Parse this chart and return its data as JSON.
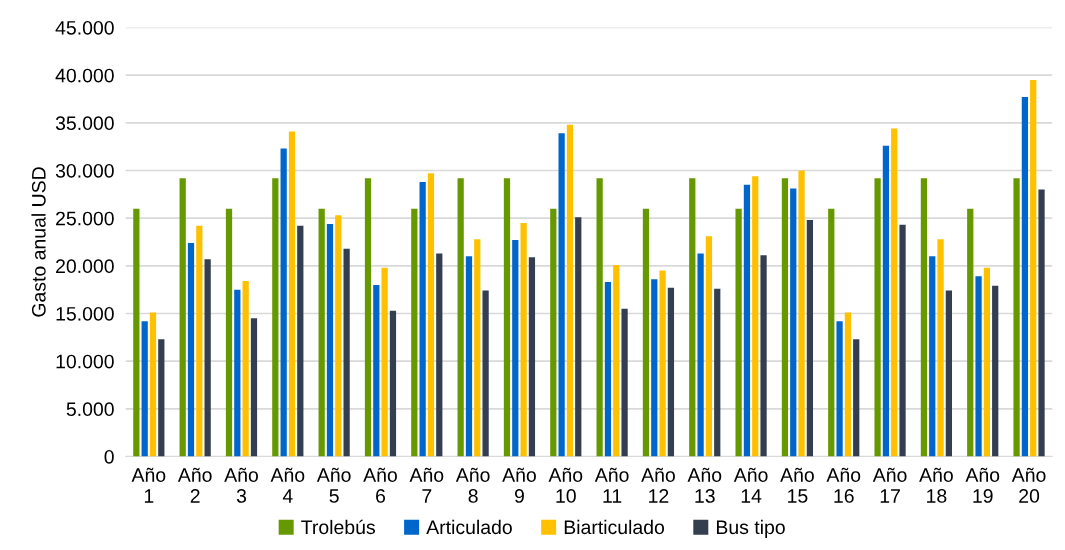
{
  "chart_data": {
    "type": "bar",
    "ylabel": "Gasto anual USD",
    "categories": [
      "Año 1",
      "Año 2",
      "Año 3",
      "Año 4",
      "Año 5",
      "Año 6",
      "Año 7",
      "Año 8",
      "Año 9",
      "Año 10",
      "Año 11",
      "Año 12",
      "Año 13",
      "Año 14",
      "Año 15",
      "Año 16",
      "Año 17",
      "Año 18",
      "Año 19",
      "Año 20"
    ],
    "series": [
      {
        "name": "Trolebús",
        "color": "#669900",
        "values": [
          26000,
          29200,
          26000,
          29200,
          26000,
          29200,
          26000,
          29200,
          29200,
          26000,
          29200,
          26000,
          29200,
          26000,
          29200,
          26000,
          29200,
          29200,
          26000,
          29200
        ]
      },
      {
        "name": "Articulado",
        "color": "#0066cc",
        "values": [
          14200,
          22400,
          17500,
          32300,
          24400,
          18000,
          28800,
          21000,
          22700,
          33900,
          18300,
          18600,
          21300,
          28500,
          28100,
          14200,
          32600,
          21000,
          18900,
          37700
        ]
      },
      {
        "name": "Biarticulado",
        "color": "#ffc000",
        "values": [
          15100,
          24200,
          18400,
          34100,
          25300,
          19800,
          29700,
          22800,
          24500,
          34800,
          20100,
          19500,
          23100,
          29400,
          30000,
          15100,
          34400,
          22800,
          19800,
          39500
        ]
      },
      {
        "name": "Bus tipo",
        "color": "#333f50",
        "values": [
          12300,
          20700,
          14500,
          24200,
          21800,
          15300,
          21300,
          17400,
          20900,
          25100,
          15500,
          17700,
          17600,
          21100,
          24800,
          12300,
          24300,
          17400,
          17900,
          28000
        ]
      }
    ],
    "ylim": [
      0,
      45000
    ],
    "yticks": [
      {
        "value": 0,
        "label": "0"
      },
      {
        "value": 5000,
        "label": "5.000"
      },
      {
        "value": 10000,
        "label": "10.000"
      },
      {
        "value": 15000,
        "label": "15.000"
      },
      {
        "value": 20000,
        "label": "20.000"
      },
      {
        "value": 25000,
        "label": "25.000"
      },
      {
        "value": 30000,
        "label": "30.000"
      },
      {
        "value": 35000,
        "label": "35.000"
      },
      {
        "value": 40000,
        "label": "40.000"
      },
      {
        "value": 45000,
        "label": "45.000"
      }
    ],
    "grid": "y",
    "legend": "bottom"
  }
}
